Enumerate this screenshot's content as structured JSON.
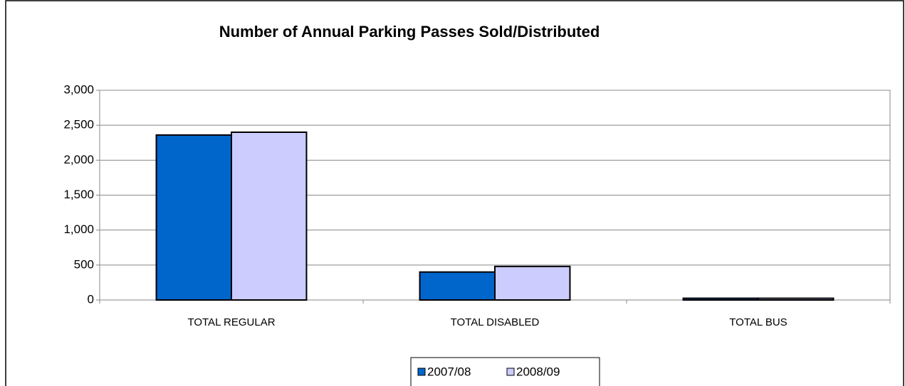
{
  "chart_data": {
    "type": "bar",
    "title": "Number of Annual Parking Passes Sold/Distributed",
    "categories": [
      "TOTAL REGULAR",
      "TOTAL DISABLED",
      "TOTAL BUS"
    ],
    "series": [
      {
        "name": "2007/08",
        "color": "#0066cc",
        "values": [
          2360,
          400,
          25
        ]
      },
      {
        "name": "2008/09",
        "color": "#ccccff",
        "values": [
          2400,
          480,
          25
        ]
      }
    ],
    "ylim": [
      0,
      3000
    ],
    "yticks": [
      0,
      500,
      {
        "value": 1000,
        "label": "1,000"
      },
      {
        "value": 1500,
        "label": "1,500"
      },
      {
        "value": 2000,
        "label": "2,000"
      },
      {
        "value": 2500,
        "label": "2,500"
      },
      {
        "value": 3000,
        "label": "3,000"
      }
    ],
    "grid": true,
    "legend": "bottom"
  }
}
